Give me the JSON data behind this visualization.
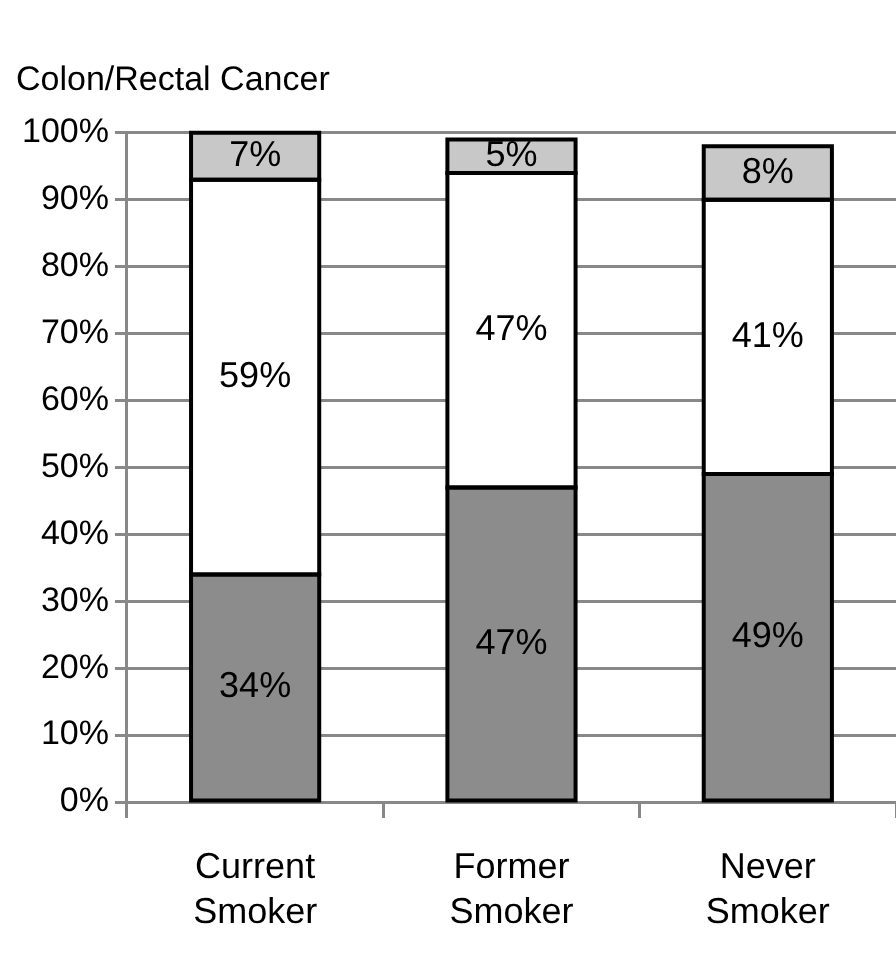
{
  "chart_data": {
    "type": "bar",
    "title": "Colon/Rectal Cancer",
    "categories": [
      "Current Smoker",
      "Former Smoker",
      "Never Smoker"
    ],
    "stacked": true,
    "ylim": [
      0,
      100
    ],
    "yticks": [
      {
        "value": 0,
        "label": "0%"
      },
      {
        "value": 10,
        "label": "10%"
      },
      {
        "value": 20,
        "label": "20%"
      },
      {
        "value": 30,
        "label": "30%"
      },
      {
        "value": 40,
        "label": "40%"
      },
      {
        "value": 50,
        "label": "50%"
      },
      {
        "value": 60,
        "label": "60%"
      },
      {
        "value": 70,
        "label": "70%"
      },
      {
        "value": 80,
        "label": "80%"
      },
      {
        "value": 90,
        "label": "90%"
      },
      {
        "value": 100,
        "label": "100%"
      }
    ],
    "grid": "y",
    "data_labels": true,
    "series": [
      {
        "color": "#8c8c8c",
        "values": [
          34,
          47,
          49
        ],
        "value_labels": [
          "34%",
          "47%",
          "49%"
        ]
      },
      {
        "color": "#ffffff",
        "values": [
          59,
          47,
          41
        ],
        "value_labels": [
          "59%",
          "47%",
          "41%"
        ]
      },
      {
        "color": "#c8c8c8",
        "values": [
          7,
          5,
          8
        ],
        "value_labels": [
          "7%",
          "5%",
          "8%"
        ]
      }
    ]
  }
}
